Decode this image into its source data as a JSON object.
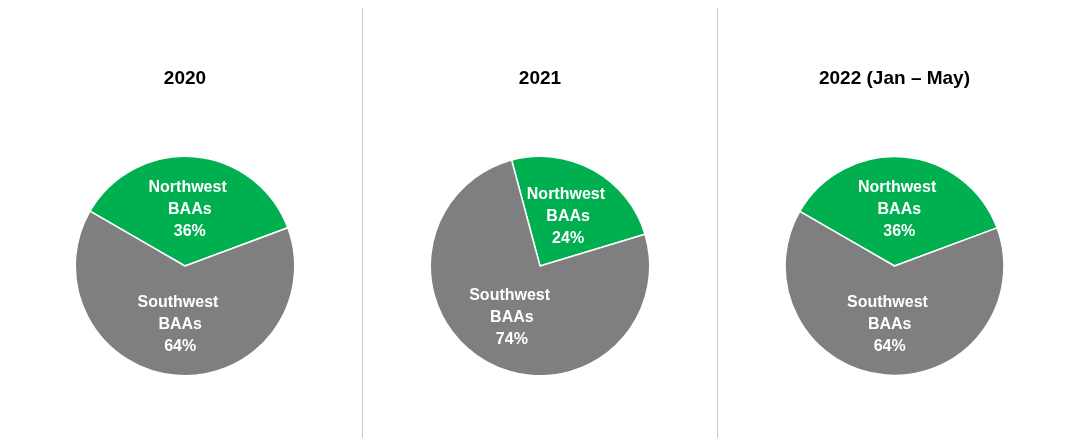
{
  "chart_data": [
    {
      "type": "pie",
      "title": "2020",
      "categories": [
        "Northwest BAAs",
        "Southwest BAAs"
      ],
      "values": [
        36,
        64
      ],
      "colors": [
        "#00b050",
        "#7f7f7f"
      ],
      "value_labels": [
        "36%",
        "64%"
      ],
      "legend": false
    },
    {
      "type": "pie",
      "title": "2021",
      "categories": [
        "Northwest BAAs",
        "Southwest BAAs"
      ],
      "values": [
        24,
        74
      ],
      "colors": [
        "#00b050",
        "#7f7f7f"
      ],
      "value_labels": [
        "24%",
        "74%"
      ],
      "legend": false
    },
    {
      "type": "pie",
      "title": "2022 (Jan – May)",
      "categories": [
        "Northwest BAAs",
        "Southwest BAAs"
      ],
      "values": [
        36,
        64
      ],
      "colors": [
        "#00b050",
        "#7f7f7f"
      ],
      "value_labels": [
        "36%",
        "64%"
      ],
      "legend": false
    }
  ]
}
